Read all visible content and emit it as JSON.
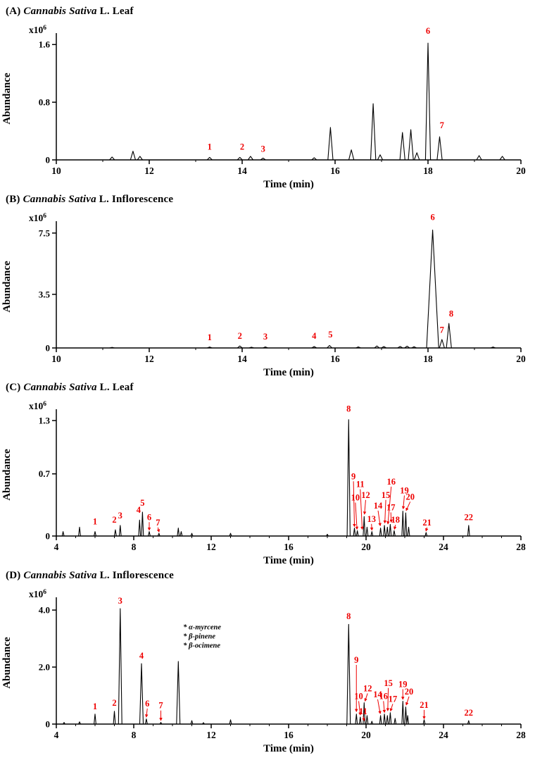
{
  "figure": {
    "background": "#ffffff",
    "trace_color": "#000000",
    "label_color": "#ee0000"
  },
  "chart_data": [
    {
      "panel": "A",
      "type": "line",
      "title": {
        "prefix": "(A)",
        "species": "Cannabis Sativa",
        "suffix": "L. Leaf"
      },
      "xlabel": "Time (min)",
      "ylabel": "Abundance",
      "scale_label": {
        "base": "x10",
        "exp": "6"
      },
      "xlim": [
        10,
        20
      ],
      "ylim": [
        0,
        1.7
      ],
      "xticks": [
        10,
        12,
        14,
        16,
        18,
        20
      ],
      "xtick_minor_step": 1,
      "yticks": [
        {
          "v": 0,
          "label": "0"
        },
        {
          "v": 0.8,
          "label": "0.8"
        },
        {
          "v": 1.6,
          "label": "1.6"
        }
      ],
      "peak_halfwidth": 0.055,
      "peaks": [
        {
          "t": 11.2,
          "h": 0.04
        },
        {
          "t": 11.65,
          "h": 0.12
        },
        {
          "t": 11.8,
          "h": 0.05
        },
        {
          "t": 13.3,
          "h": 0.035
        },
        {
          "t": 13.95,
          "h": 0.035
        },
        {
          "t": 14.18,
          "h": 0.05
        },
        {
          "t": 14.45,
          "h": 0.025
        },
        {
          "t": 15.55,
          "h": 0.03
        },
        {
          "t": 15.9,
          "h": 0.45
        },
        {
          "t": 16.35,
          "h": 0.14
        },
        {
          "t": 16.82,
          "h": 0.78
        },
        {
          "t": 16.97,
          "h": 0.07
        },
        {
          "t": 17.45,
          "h": 0.38
        },
        {
          "t": 17.63,
          "h": 0.42
        },
        {
          "t": 17.76,
          "h": 0.1
        },
        {
          "t": 18.0,
          "h": 1.62
        },
        {
          "t": 18.25,
          "h": 0.32
        },
        {
          "t": 19.1,
          "h": 0.06
        },
        {
          "t": 19.6,
          "h": 0.05
        }
      ],
      "labels": [
        {
          "text": "1",
          "x": 13.3,
          "y": 0.14
        },
        {
          "text": "2",
          "x": 14.0,
          "y": 0.14
        },
        {
          "text": "3",
          "x": 14.45,
          "y": 0.11
        },
        {
          "text": "6",
          "x": 18.0,
          "y": 1.75
        },
        {
          "text": "7",
          "x": 18.3,
          "y": 0.44
        }
      ],
      "annotations": []
    },
    {
      "panel": "B",
      "type": "line",
      "title": {
        "prefix": "(B)",
        "species": "Cannabis Sativa",
        "suffix": "L. Inflorescence"
      },
      "xlabel": "Time (min)",
      "ylabel": "Abundance",
      "scale_label": {
        "base": "x10",
        "exp": "6"
      },
      "xlim": [
        10,
        20
      ],
      "ylim": [
        0,
        8.0
      ],
      "xticks": [
        10,
        12,
        14,
        16,
        18,
        20
      ],
      "xtick_minor_step": 1,
      "yticks": [
        {
          "v": 0,
          "label": "0"
        },
        {
          "v": 3.5,
          "label": "3.5"
        },
        {
          "v": 7.5,
          "label": "7.5"
        }
      ],
      "peak_halfwidth": 0.055,
      "peaks": [
        {
          "t": 11.2,
          "h": 0.04
        },
        {
          "t": 13.3,
          "h": 0.06
        },
        {
          "t": 13.95,
          "h": 0.13
        },
        {
          "t": 14.2,
          "h": 0.05
        },
        {
          "t": 14.5,
          "h": 0.07
        },
        {
          "t": 15.55,
          "h": 0.09
        },
        {
          "t": 15.88,
          "h": 0.16
        },
        {
          "t": 16.5,
          "h": 0.07
        },
        {
          "t": 16.9,
          "h": 0.13
        },
        {
          "t": 17.05,
          "h": 0.09
        },
        {
          "t": 17.4,
          "h": 0.1
        },
        {
          "t": 17.55,
          "h": 0.12
        },
        {
          "t": 17.7,
          "h": 0.08
        },
        {
          "t": 18.1,
          "h": 7.7,
          "w": 0.13
        },
        {
          "t": 18.3,
          "h": 0.55
        },
        {
          "t": 18.45,
          "h": 1.6
        },
        {
          "t": 19.4,
          "h": 0.06
        }
      ],
      "labels": [
        {
          "text": "1",
          "x": 13.3,
          "y": 0.5
        },
        {
          "text": "2",
          "x": 13.95,
          "y": 0.6
        },
        {
          "text": "3",
          "x": 14.5,
          "y": 0.55
        },
        {
          "text": "4",
          "x": 15.55,
          "y": 0.6
        },
        {
          "text": "5",
          "x": 15.9,
          "y": 0.68
        },
        {
          "text": "6",
          "x": 18.1,
          "y": 8.35
        },
        {
          "text": "7",
          "x": 18.3,
          "y": 1.0
        },
        {
          "text": "8",
          "x": 18.5,
          "y": 2.05
        }
      ],
      "annotations": []
    },
    {
      "panel": "C",
      "type": "line",
      "title": {
        "prefix": "(C)",
        "species": "Cannabis Sativa",
        "suffix": "L. Leaf"
      },
      "xlabel": "Time (min)",
      "ylabel": "Abundance",
      "scale_label": {
        "base": "x10",
        "exp": "6"
      },
      "xlim": [
        4,
        28
      ],
      "ylim": [
        0,
        1.38
      ],
      "xticks": [
        4,
        8,
        12,
        16,
        20,
        24,
        28
      ],
      "xtick_minor_step": 1,
      "yticks": [
        {
          "v": 0,
          "label": "0"
        },
        {
          "v": 0.7,
          "label": "0.7"
        },
        {
          "v": 1.3,
          "label": "1.3"
        }
      ],
      "peak_halfwidth": 0.05,
      "peaks": [
        {
          "t": 4.35,
          "h": 0.05
        },
        {
          "t": 5.2,
          "h": 0.1
        },
        {
          "t": 6.0,
          "h": 0.05
        },
        {
          "t": 7.05,
          "h": 0.07
        },
        {
          "t": 7.3,
          "h": 0.12
        },
        {
          "t": 8.3,
          "h": 0.18
        },
        {
          "t": 8.45,
          "h": 0.27
        },
        {
          "t": 8.8,
          "h": 0.05
        },
        {
          "t": 9.3,
          "h": 0.03
        },
        {
          "t": 10.3,
          "h": 0.09
        },
        {
          "t": 10.45,
          "h": 0.05
        },
        {
          "t": 11.0,
          "h": 0.03
        },
        {
          "t": 13.0,
          "h": 0.03
        },
        {
          "t": 18.0,
          "h": 0.02
        },
        {
          "t": 19.1,
          "h": 1.31,
          "w": 0.08
        },
        {
          "t": 19.4,
          "h": 0.09
        },
        {
          "t": 19.55,
          "h": 0.06
        },
        {
          "t": 19.9,
          "h": 0.22
        },
        {
          "t": 20.05,
          "h": 0.1
        },
        {
          "t": 20.3,
          "h": 0.05
        },
        {
          "t": 20.75,
          "h": 0.09
        },
        {
          "t": 20.95,
          "h": 0.12
        },
        {
          "t": 21.1,
          "h": 0.1
        },
        {
          "t": 21.25,
          "h": 0.13
        },
        {
          "t": 21.45,
          "h": 0.06
        },
        {
          "t": 21.9,
          "h": 0.28
        },
        {
          "t": 22.05,
          "h": 0.26
        },
        {
          "t": 22.2,
          "h": 0.1
        },
        {
          "t": 23.1,
          "h": 0.04
        },
        {
          "t": 25.3,
          "h": 0.12
        }
      ],
      "labels": [
        {
          "text": "1",
          "x": 6.0,
          "y": 0.13
        },
        {
          "text": "2",
          "x": 7.0,
          "y": 0.15
        },
        {
          "text": "3",
          "x": 7.3,
          "y": 0.2
        },
        {
          "text": "4",
          "x": 8.25,
          "y": 0.26
        },
        {
          "text": "5",
          "x": 8.45,
          "y": 0.34
        },
        {
          "text": "6",
          "x": 8.8,
          "y": 0.18,
          "ax": 8.8,
          "ay": 0.07
        },
        {
          "text": "7",
          "x": 9.25,
          "y": 0.12,
          "ax": 9.3,
          "ay": 0.05
        },
        {
          "text": "8",
          "x": 19.1,
          "y": 1.4
        },
        {
          "text": "9",
          "x": 19.35,
          "y": 0.64,
          "ax": 19.4,
          "ay": 0.11
        },
        {
          "text": "10",
          "x": 19.45,
          "y": 0.4,
          "ax": 19.53,
          "ay": 0.08
        },
        {
          "text": "11",
          "x": 19.7,
          "y": 0.55,
          "ax": 19.8,
          "ay": 0.08
        },
        {
          "text": "12",
          "x": 19.98,
          "y": 0.43,
          "ax": 19.92,
          "ay": 0.25
        },
        {
          "text": "13",
          "x": 20.28,
          "y": 0.16,
          "ax": 20.3,
          "ay": 0.07
        },
        {
          "text": "14",
          "x": 20.62,
          "y": 0.31,
          "ax": 20.73,
          "ay": 0.12
        },
        {
          "text": "15",
          "x": 21.02,
          "y": 0.43,
          "ax": 20.97,
          "ay": 0.15
        },
        {
          "text": "16",
          "x": 21.3,
          "y": 0.58,
          "ax": 21.13,
          "ay": 0.14
        },
        {
          "text": "17",
          "x": 21.28,
          "y": 0.29,
          "ax": 21.3,
          "ay": 0.16
        },
        {
          "text": "18",
          "x": 21.52,
          "y": 0.15,
          "ax": 21.47,
          "ay": 0.08
        },
        {
          "text": "19",
          "x": 21.98,
          "y": 0.48,
          "ax": 21.92,
          "ay": 0.31
        },
        {
          "text": "20",
          "x": 22.28,
          "y": 0.41,
          "ax": 22.08,
          "ay": 0.29
        },
        {
          "text": "21",
          "x": 23.15,
          "y": 0.12,
          "ax": 23.1,
          "ay": 0.06
        },
        {
          "text": "22",
          "x": 25.3,
          "y": 0.18
        }
      ],
      "annotations": []
    },
    {
      "panel": "D",
      "type": "line",
      "title": {
        "prefix": "(D)",
        "species": "Cannabis Sativa",
        "suffix": "L. Inflorescence"
      },
      "xlabel": "Time (min)",
      "ylabel": "Abundance",
      "scale_label": {
        "base": "x10",
        "exp": "6"
      },
      "xlim": [
        4,
        28
      ],
      "ylim": [
        0,
        4.3
      ],
      "xticks": [
        4,
        8,
        12,
        16,
        20,
        24,
        28
      ],
      "xtick_minor_step": 1,
      "yticks": [
        {
          "v": 0,
          "label": "0"
        },
        {
          "v": 2.0,
          "label": "2.0"
        },
        {
          "v": 4.0,
          "label": "4.0"
        }
      ],
      "peak_halfwidth": 0.05,
      "peaks": [
        {
          "t": 4.4,
          "h": 0.06
        },
        {
          "t": 5.2,
          "h": 0.08
        },
        {
          "t": 6.0,
          "h": 0.35
        },
        {
          "t": 7.0,
          "h": 0.45
        },
        {
          "t": 7.3,
          "h": 4.05,
          "w": 0.09
        },
        {
          "t": 8.4,
          "h": 2.12,
          "w": 0.09
        },
        {
          "t": 8.65,
          "h": 0.18
        },
        {
          "t": 9.4,
          "h": 0.06
        },
        {
          "t": 10.3,
          "h": 2.2,
          "w": 0.09
        },
        {
          "t": 11.0,
          "h": 0.12
        },
        {
          "t": 11.6,
          "h": 0.05
        },
        {
          "t": 13.0,
          "h": 0.15
        },
        {
          "t": 19.1,
          "h": 3.5,
          "w": 0.09
        },
        {
          "t": 19.5,
          "h": 0.35
        },
        {
          "t": 19.7,
          "h": 0.25
        },
        {
          "t": 19.9,
          "h": 0.75
        },
        {
          "t": 20.05,
          "h": 0.3
        },
        {
          "t": 20.3,
          "h": 0.1
        },
        {
          "t": 20.75,
          "h": 0.3
        },
        {
          "t": 20.95,
          "h": 0.35
        },
        {
          "t": 21.1,
          "h": 0.3
        },
        {
          "t": 21.25,
          "h": 0.4
        },
        {
          "t": 21.5,
          "h": 0.2
        },
        {
          "t": 21.9,
          "h": 0.8
        },
        {
          "t": 22.05,
          "h": 0.6
        },
        {
          "t": 22.15,
          "h": 0.3
        },
        {
          "t": 23.0,
          "h": 0.15
        },
        {
          "t": 25.3,
          "h": 0.12
        }
      ],
      "labels": [
        {
          "text": "1",
          "x": 6.0,
          "y": 0.52
        },
        {
          "text": "2",
          "x": 7.0,
          "y": 0.64
        },
        {
          "text": "3",
          "x": 7.3,
          "y": 4.22
        },
        {
          "text": "4",
          "x": 8.4,
          "y": 2.3
        },
        {
          "text": "6",
          "x": 8.7,
          "y": 0.62,
          "ax": 8.65,
          "ay": 0.26
        },
        {
          "text": "7",
          "x": 9.4,
          "y": 0.55,
          "ax": 9.4,
          "ay": 0.14
        },
        {
          "text": "8",
          "x": 19.1,
          "y": 3.68
        },
        {
          "text": "9",
          "x": 19.5,
          "y": 2.15,
          "ax": 19.5,
          "ay": 0.45
        },
        {
          "text": "10",
          "x": 19.62,
          "y": 0.88,
          "ax": 19.7,
          "ay": 0.33
        },
        {
          "text": "11",
          "x": 19.85,
          "y": 0.35,
          "ax": 19.9,
          "ay": 0.13
        },
        {
          "text": "12",
          "x": 20.08,
          "y": 1.15,
          "ax": 19.95,
          "ay": 0.82
        },
        {
          "text": "14",
          "x": 20.6,
          "y": 0.94,
          "ax": 20.73,
          "ay": 0.38
        },
        {
          "text": "16",
          "x": 20.9,
          "y": 0.88,
          "ax": 20.95,
          "ay": 0.42
        },
        {
          "text": "15",
          "x": 21.15,
          "y": 1.34,
          "ax": 21.12,
          "ay": 0.48
        },
        {
          "text": "17",
          "x": 21.38,
          "y": 0.78,
          "ax": 21.27,
          "ay": 0.47
        },
        {
          "text": "19",
          "x": 21.9,
          "y": 1.3,
          "ax": 21.9,
          "ay": 0.88
        },
        {
          "text": "20",
          "x": 22.22,
          "y": 1.04,
          "ax": 22.08,
          "ay": 0.68
        },
        {
          "text": "21",
          "x": 23.0,
          "y": 0.57,
          "ax": 23.0,
          "ay": 0.2
        },
        {
          "text": "22",
          "x": 25.3,
          "y": 0.3
        }
      ],
      "annotations": [
        {
          "x": 10.55,
          "y": 3.32,
          "lines": [
            "* α-myrcene",
            "* β-pinene",
            "* β-ocimene"
          ]
        }
      ]
    }
  ]
}
